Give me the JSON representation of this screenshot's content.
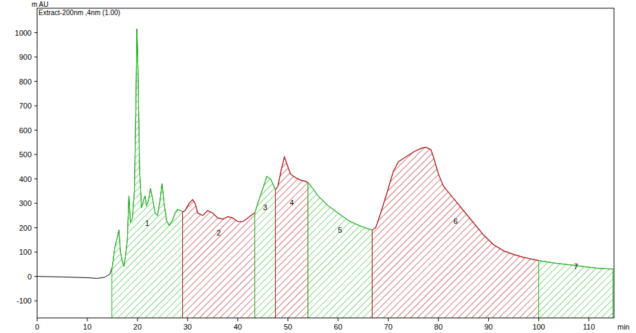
{
  "chart_data": {
    "type": "line",
    "title": "Extract-200nm ,4nm (1.00)",
    "y_label": "m AU",
    "x_label": "min",
    "xlim": [
      0,
      115
    ],
    "ylim": [
      -170,
      1100
    ],
    "xticks": [
      0,
      10,
      20,
      30,
      40,
      50,
      60,
      70,
      80,
      90,
      100,
      110
    ],
    "yticks": [
      -100,
      0,
      100,
      200,
      300,
      400,
      500,
      600,
      700,
      800,
      900,
      1000
    ],
    "grid": false,
    "color": "#000000",
    "x": [
      0,
      5,
      10,
      12,
      13.5,
      14.5,
      15,
      15.5,
      16,
      16.3,
      16.6,
      17,
      17.3,
      17.6,
      18,
      18.3,
      18.6,
      19,
      19.4,
      19.7,
      19.9,
      20.1,
      20.4,
      20.8,
      21.2,
      21.5,
      21.8,
      22.2,
      22.6,
      23,
      23.5,
      24,
      24.5,
      24.9,
      25.3,
      25.8,
      26.3,
      27,
      27.5,
      28,
      28.6,
      29,
      29.5,
      30.3,
      31,
      31.5,
      32,
      33,
      34,
      35,
      36,
      37,
      38,
      39,
      40,
      41,
      42,
      43,
      43.4,
      44,
      45,
      45.8,
      46.5,
      47,
      47.5,
      48,
      48.7,
      49.3,
      49.8,
      50.5,
      51.5,
      52.5,
      53.5,
      54,
      55,
      56,
      58,
      60,
      62,
      64,
      66,
      66.8,
      67.5,
      68.5,
      70,
      71,
      72,
      73.5,
      75,
      76.5,
      77.5,
      78.5,
      79,
      80,
      81,
      83,
      85,
      87,
      89,
      91,
      93,
      95,
      97,
      100,
      103,
      106,
      109,
      112,
      114.8
    ],
    "values": [
      0,
      -2,
      -5,
      -8,
      -3,
      10,
      40,
      120,
      160,
      190,
      100,
      60,
      40,
      80,
      150,
      330,
      220,
      240,
      350,
      700,
      1015,
      850,
      450,
      280,
      310,
      330,
      290,
      310,
      360,
      320,
      260,
      250,
      310,
      380,
      300,
      230,
      210,
      230,
      260,
      275,
      270,
      265,
      270,
      300,
      315,
      300,
      260,
      250,
      270,
      260,
      240,
      235,
      245,
      240,
      225,
      225,
      240,
      255,
      260,
      300,
      360,
      410,
      400,
      380,
      355,
      370,
      440,
      490,
      460,
      420,
      405,
      395,
      390,
      385,
      360,
      330,
      290,
      260,
      230,
      210,
      195,
      190,
      200,
      260,
      360,
      430,
      470,
      490,
      510,
      525,
      530,
      520,
      490,
      420,
      370,
      320,
      270,
      220,
      170,
      130,
      105,
      90,
      78,
      65,
      55,
      48,
      40,
      33,
      30
    ],
    "fractions": [
      {
        "label": "1",
        "start": 14.9,
        "end": 29.0,
        "color": "#22bb22"
      },
      {
        "label": "2",
        "start": 29.0,
        "end": 43.4,
        "color": "#bb1111"
      },
      {
        "label": "3",
        "start": 43.4,
        "end": 47.5,
        "color": "#22bb22"
      },
      {
        "label": "4",
        "start": 47.5,
        "end": 54.0,
        "color": "#bb1111"
      },
      {
        "label": "5",
        "start": 54.0,
        "end": 66.8,
        "color": "#22bb22"
      },
      {
        "label": "6",
        "start": 66.8,
        "end": 100,
        "color": "#bb1111"
      },
      {
        "label": "7",
        "start": 100,
        "end": 114.8,
        "color": "#22bb22"
      }
    ]
  }
}
